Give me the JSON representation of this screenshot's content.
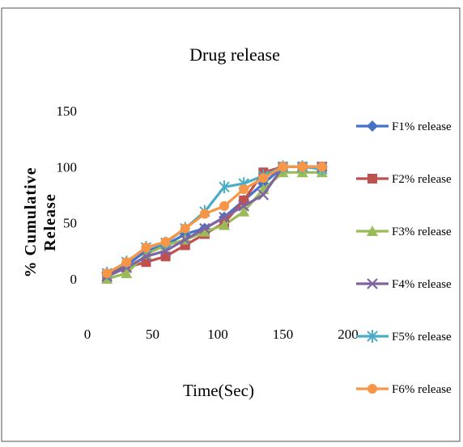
{
  "chart_data": {
    "type": "line",
    "title": "Drug release",
    "xlabel": "Time(Sec)",
    "ylabel_lines": [
      "% Cumulative",
      "Release"
    ],
    "xlim": [
      0,
      200
    ],
    "ylim": [
      0,
      150
    ],
    "xticks": [
      "0",
      "50",
      "100",
      "150",
      "200"
    ],
    "yticks": [
      "0",
      "50",
      "100",
      "150"
    ],
    "grid": false,
    "legend_position": "right",
    "x": [
      15,
      30,
      45,
      60,
      75,
      90,
      105,
      120,
      135,
      150,
      165,
      180
    ],
    "series": [
      {
        "name": "F1% release",
        "color": "#4472c4",
        "marker": "diamond",
        "values": [
          5,
          12,
          25,
          30,
          40,
          45,
          55,
          70,
          85,
          100,
          100,
          100
        ]
      },
      {
        "name": "F2% release",
        "color": "#c0504d",
        "marker": "square",
        "values": [
          3,
          10,
          15,
          20,
          30,
          40,
          50,
          70,
          95,
          100,
          100,
          100
        ]
      },
      {
        "name": "F3% release",
        "color": "#9bbb59",
        "marker": "triangle",
        "values": [
          0,
          5,
          22,
          30,
          35,
          42,
          48,
          60,
          80,
          95,
          95,
          95
        ]
      },
      {
        "name": "F4% release",
        "color": "#8064a2",
        "marker": "x",
        "values": [
          2,
          10,
          20,
          25,
          35,
          45,
          55,
          65,
          75,
          100,
          100,
          100
        ]
      },
      {
        "name": "F5% release",
        "color": "#4bacc6",
        "marker": "star",
        "values": [
          5,
          15,
          28,
          32,
          45,
          60,
          82,
          85,
          92,
          100,
          100,
          98
        ]
      },
      {
        "name": "F6% release",
        "color": "#f79646",
        "marker": "circle",
        "values": [
          5,
          15,
          28,
          33,
          45,
          58,
          65,
          80,
          90,
          100,
          100,
          100
        ]
      }
    ]
  }
}
